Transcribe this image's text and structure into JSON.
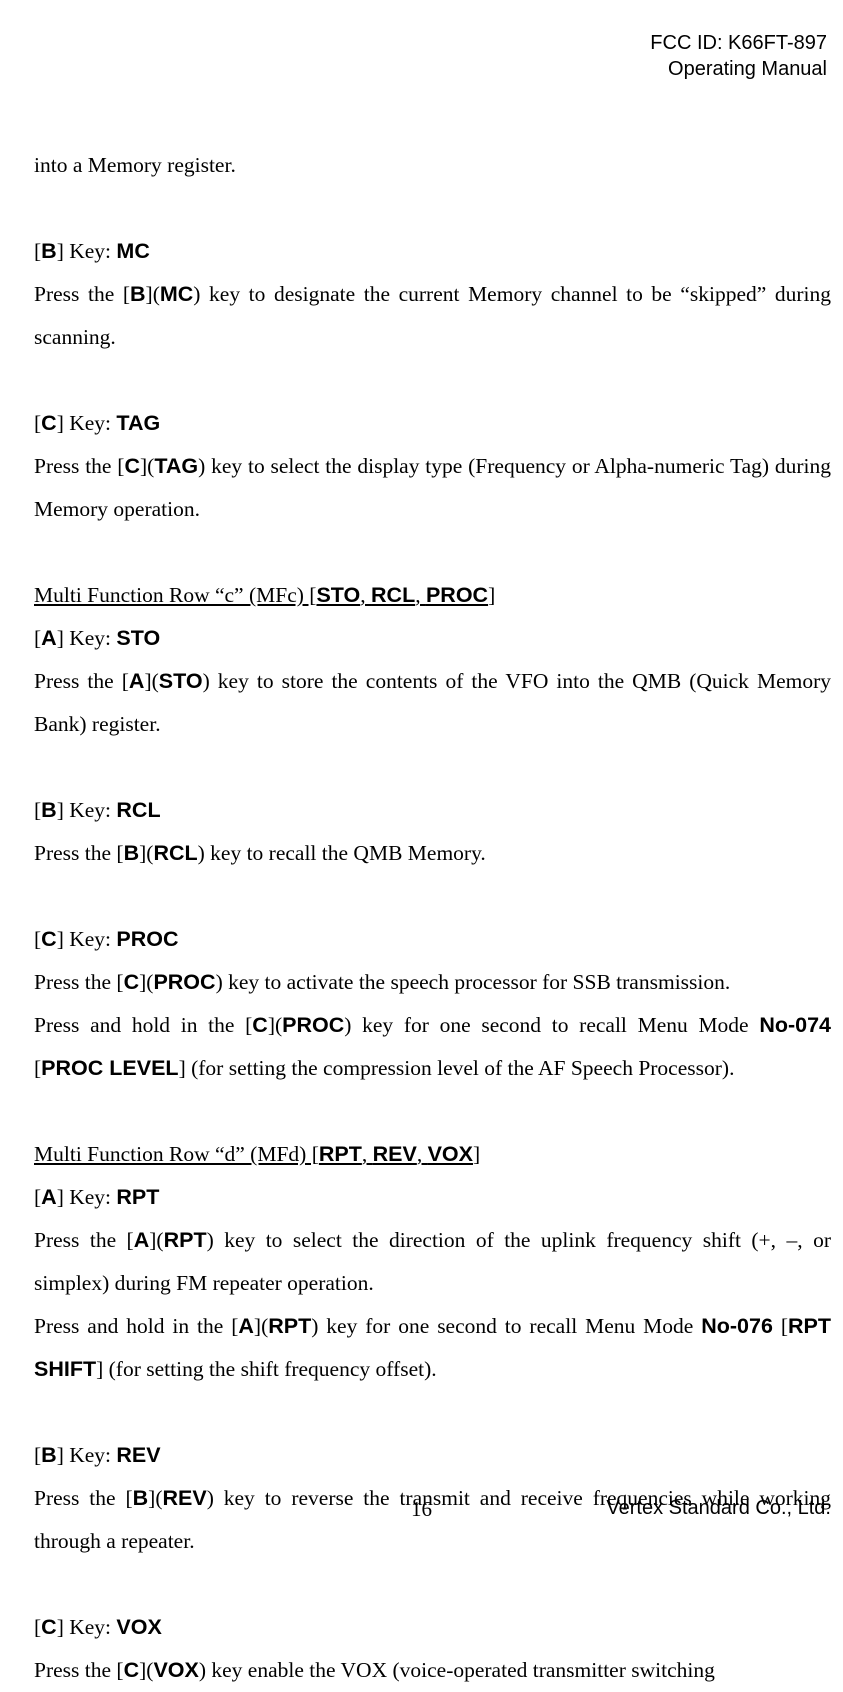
{
  "header": {
    "fcc": "FCC ID: K66FT-897",
    "manual": "Operating Manual"
  },
  "p_intro": "into a Memory register.",
  "b_key": {
    "pre": "[",
    "key": "B",
    "post": "] Key: ",
    "label": "MC"
  },
  "b_desc": {
    "t1": "Press the [",
    "k1": "B",
    "t2": "](",
    "k2": "MC",
    "t3": ") key to designate the current Memory channel to be “skipped” during scanning."
  },
  "c_key": {
    "pre": "[",
    "key": "C",
    "post": "] Key: ",
    "label": "TAG"
  },
  "c_desc": {
    "t1": "Press the [",
    "k1": "C",
    "t2": "](",
    "k2": "TAG",
    "t3": ") key to select the display type (Frequency or Alpha-numeric Tag) during Memory operation."
  },
  "mfc_head": {
    "t1": "Multi Function Row “c” (MFc) [",
    "k1": "STO",
    "c1": ", ",
    "k2": "RCL",
    "c2": ", ",
    "k3": "PROC",
    "t2": "]"
  },
  "sto_key": {
    "pre": "[",
    "key": "A",
    "post": "] Key: ",
    "label": "STO"
  },
  "sto_desc": {
    "t1": "Press the [",
    "k1": "A",
    "t2": "](",
    "k2": "STO",
    "t3": ") key to store the contents of the VFO into the QMB (Quick Memory Bank) register."
  },
  "rcl_key": {
    "pre": "[",
    "key": "B",
    "post": "] Key: ",
    "label": "RCL"
  },
  "rcl_desc": {
    "t1": "Press the [",
    "k1": "B",
    "t2": "](",
    "k2": "RCL",
    "t3": ") key to recall the QMB Memory."
  },
  "proc_key": {
    "pre": "[",
    "key": "C",
    "post": "] Key: ",
    "label": "PROC"
  },
  "proc_desc1": {
    "t1": "Press the [",
    "k1": "C",
    "t2": "](",
    "k2": "PROC",
    "t3": ") key to activate the speech processor for SSB transmission."
  },
  "proc_desc2": {
    "t1": "Press and hold in the [",
    "k1": "C",
    "t2": "](",
    "k2": "PROC",
    "t3": ") key for one second to recall Menu Mode ",
    "k3": "No-074",
    "t4": " [",
    "k4": "PROC LEVEL",
    "t5": "] (for setting the compression level of the AF Speech Processor)."
  },
  "mfd_head": {
    "t1": "Multi Function Row “d” (MFd) [",
    "k1": "RPT",
    "c1": ", ",
    "k2": "REV",
    "c2": ", ",
    "k3": "VOX",
    "t2": "]"
  },
  "rpt_key": {
    "pre": "[",
    "key": "A",
    "post": "] Key: ",
    "label": "RPT"
  },
  "rpt_desc1": {
    "t1": "Press the [",
    "k1": "A",
    "t2": "](",
    "k2": "RPT",
    "t3": ") key to select the direction of the uplink frequency shift (+, –, or simplex) during FM repeater operation."
  },
  "rpt_desc2": {
    "t1": "Press and hold in the [",
    "k1": "A",
    "t2": "](",
    "k2": "RPT",
    "t3": ") key for one second to recall Menu Mode ",
    "k3": "No-076",
    "t4": " [",
    "k4": "RPT SHIFT",
    "t5": "] (for setting the shift frequency offset)."
  },
  "rev_key": {
    "pre": "[",
    "key": "B",
    "post": "] Key: ",
    "label": "REV"
  },
  "rev_desc": {
    "t1": "Press the [",
    "k1": "B",
    "t2": "](",
    "k2": "REV",
    "t3": ") key to reverse the transmit and receive frequencies while working through a repeater."
  },
  "vox_key": {
    "pre": "[",
    "key": "C",
    "post": "] Key: ",
    "label": "VOX"
  },
  "vox_desc": {
    "t1": "Press the [",
    "k1": "C",
    "t2": "](",
    "k2": "VOX",
    "t3": ") key enable the VOX (voice-operated transmitter switching"
  },
  "footer": {
    "page": "16",
    "company": "Vertex Standard Co., Ltd."
  }
}
